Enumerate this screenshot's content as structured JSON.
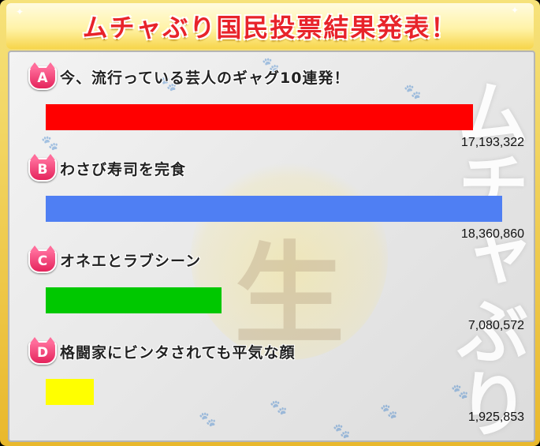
{
  "title": "ムチャぶり国民投票結果発表！",
  "watermark": "生",
  "side_text": "ムチャぶり",
  "max_votes": 18360860,
  "options": [
    {
      "letter": "A",
      "label": "今、流行っている芸人のギャグ10連発！",
      "votes": 17193322,
      "votes_text": "17,193,322",
      "color": "#ff0000"
    },
    {
      "letter": "B",
      "label": "わさび寿司を完食",
      "votes": 18360860,
      "votes_text": "18,360,860",
      "color": "#4f7ff3"
    },
    {
      "letter": "C",
      "label": "オネエとラブシーン",
      "votes": 7080572,
      "votes_text": "7,080,572",
      "color": "#00c800"
    },
    {
      "letter": "D",
      "label": "格闘家にビンタされても平気な顔",
      "votes": 1925853,
      "votes_text": "1,925,853",
      "color": "#ffff00"
    }
  ]
}
